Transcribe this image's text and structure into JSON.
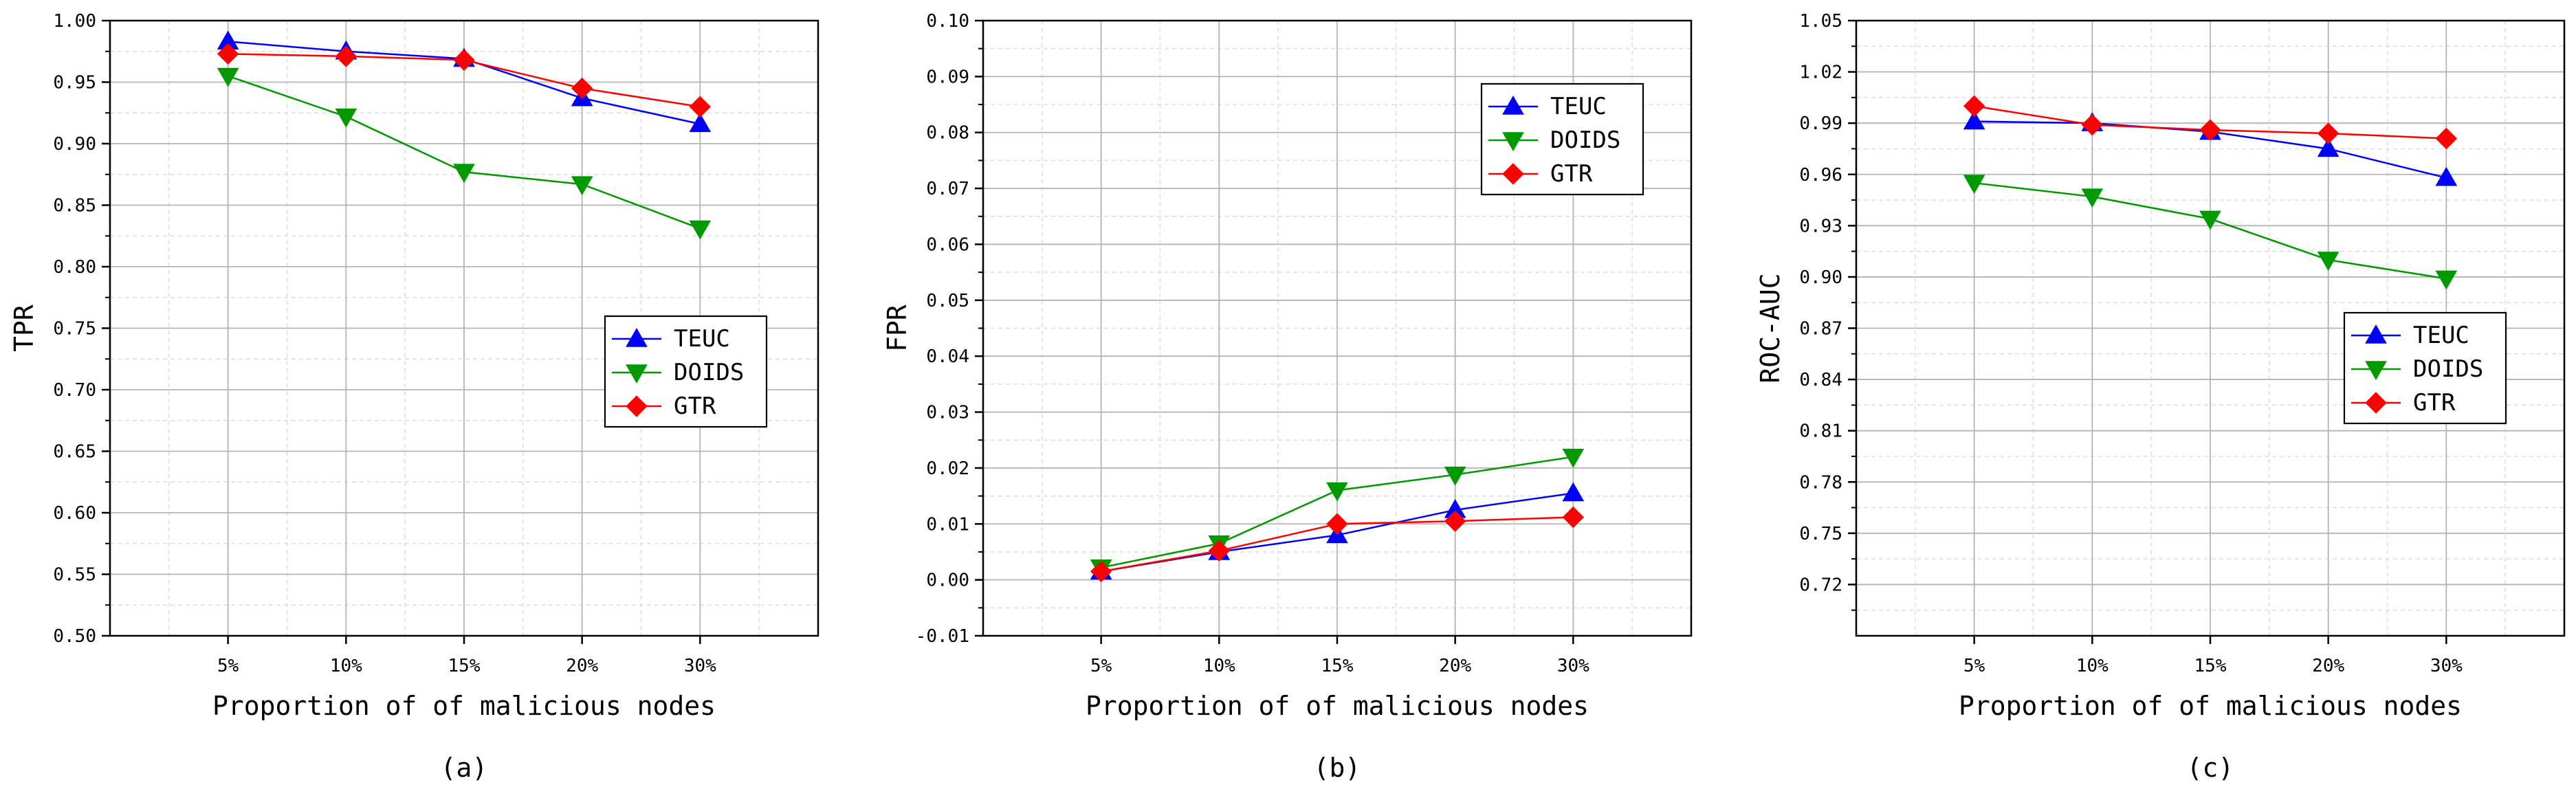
{
  "chart_data": [
    {
      "type": "line",
      "caption": "(a)",
      "xlabel": "Proportion of  of malicious nodes",
      "ylabel": "TPR",
      "categories": [
        "5%",
        "10%",
        "15%",
        "20%",
        "30%"
      ],
      "ylim": [
        0.5,
        1.0
      ],
      "yticks": [
        "0.50",
        "0.55",
        "0.60",
        "0.65",
        "0.70",
        "0.75",
        "0.80",
        "0.85",
        "0.90",
        "0.95",
        "1.00"
      ],
      "legend_position": "right-middle",
      "series": [
        {
          "name": "TEUC",
          "color": "#0000ff",
          "marker": "triangle-up",
          "values": [
            0.983,
            0.975,
            0.969,
            0.937,
            0.916
          ]
        },
        {
          "name": "DOIDS",
          "color": "#009900",
          "marker": "triangle-down",
          "values": [
            0.955,
            0.922,
            0.877,
            0.867,
            0.831
          ]
        },
        {
          "name": "GTR",
          "color": "#ff0000",
          "marker": "diamond",
          "values": [
            0.973,
            0.971,
            0.968,
            0.945,
            0.93
          ]
        }
      ]
    },
    {
      "type": "line",
      "caption": "(b)",
      "xlabel": "Proportion of  of malicious nodes",
      "ylabel": "FPR",
      "categories": [
        "5%",
        "10%",
        "15%",
        "20%",
        "30%"
      ],
      "ylim": [
        -0.01,
        0.1
      ],
      "yticks": [
        "-0.01",
        "0.00",
        "0.01",
        "0.02",
        "0.03",
        "0.04",
        "0.05",
        "0.06",
        "0.07",
        "0.08",
        "0.09",
        "0.10"
      ],
      "legend_position": "top-right",
      "series": [
        {
          "name": "TEUC",
          "color": "#0000ff",
          "marker": "triangle-up",
          "values": [
            0.0015,
            0.005,
            0.008,
            0.0125,
            0.0155
          ]
        },
        {
          "name": "DOIDS",
          "color": "#009900",
          "marker": "triangle-down",
          "values": [
            0.0022,
            0.0065,
            0.016,
            0.0188,
            0.022
          ]
        },
        {
          "name": "GTR",
          "color": "#ff0000",
          "marker": "diamond",
          "values": [
            0.0015,
            0.0052,
            0.01,
            0.0105,
            0.0112
          ]
        }
      ]
    },
    {
      "type": "line",
      "caption": "(c)",
      "xlabel": "Proportion of  of malicious nodes",
      "ylabel": "ROC-AUC",
      "categories": [
        "5%",
        "10%",
        "15%",
        "20%",
        "30%"
      ],
      "ylim": [
        0.69,
        1.05
      ],
      "yticks": [
        "0.72",
        "0.75",
        "0.78",
        "0.81",
        "0.84",
        "0.87",
        "0.90",
        "0.93",
        "0.96",
        "0.99",
        "1.02",
        "1.05"
      ],
      "legend_position": "right-middle",
      "series": [
        {
          "name": "TEUC",
          "color": "#0000ff",
          "marker": "triangle-up",
          "values": [
            0.991,
            0.99,
            0.985,
            0.975,
            0.958
          ]
        },
        {
          "name": "DOIDS",
          "color": "#009900",
          "marker": "triangle-down",
          "values": [
            0.955,
            0.947,
            0.934,
            0.91,
            0.899
          ]
        },
        {
          "name": "GTR",
          "color": "#ff0000",
          "marker": "diamond",
          "values": [
            1.0,
            0.989,
            0.986,
            0.984,
            0.981
          ]
        }
      ]
    }
  ]
}
